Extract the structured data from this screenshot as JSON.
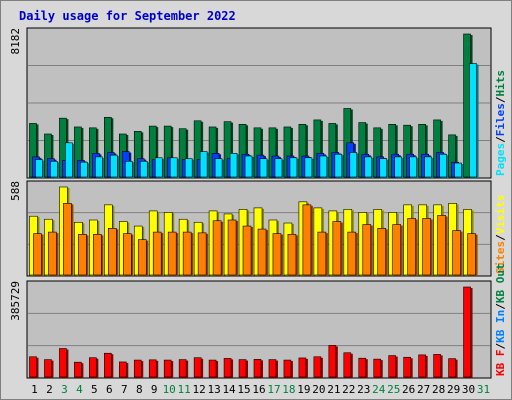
{
  "title": "Daily usage for September 2022",
  "colors": {
    "hits": "#008040",
    "files": "#0040ff",
    "pages": "#00e0ff",
    "visits": "#ffff00",
    "sites": "#ff8000",
    "kb_in": "#008040",
    "kb_out": "#0080ff",
    "kb_f": "#ff0000",
    "panel_bg": "#c0c0c0",
    "frame_bg": "#d8d8d8",
    "grid": "#808080",
    "weekday_label": "#000000",
    "weekend_label": "#008040"
  },
  "chart_data": {
    "type": "bar",
    "days": [
      "1",
      "2",
      "3",
      "4",
      "5",
      "6",
      "7",
      "8",
      "9",
      "10",
      "11",
      "12",
      "13",
      "14",
      "15",
      "16",
      "17",
      "18",
      "19",
      "20",
      "21",
      "22",
      "23",
      "24",
      "25",
      "26",
      "27",
      "28",
      "29",
      "30",
      "31"
    ],
    "weekend_days": [
      "3",
      "4",
      "10",
      "11",
      "17",
      "18",
      "24",
      "25",
      "31"
    ],
    "panels": [
      {
        "id": "hits",
        "axis_max_label": "8182",
        "ymax": 8182,
        "legend": [
          {
            "text": "Pages",
            "color": "#00e0ff"
          },
          {
            "text": "/",
            "color": "#000000"
          },
          {
            "text": "Files",
            "color": "#0040ff"
          },
          {
            "text": "/",
            "color": "#000000"
          },
          {
            "text": "Hits",
            "color": "#008040"
          }
        ],
        "series": [
          {
            "name": "Hits",
            "color": "#008040",
            "values": [
              3100,
              2500,
              3400,
              2900,
              2850,
              3450,
              2500,
              2650,
              2950,
              2950,
              2800,
              3250,
              2900,
              3200,
              3050,
              2850,
              2850,
              2900,
              3050,
              3300,
              3100,
              3950,
              3150,
              2850,
              3050,
              3000,
              3050,
              3300,
              2450,
              8182,
              0
            ]
          },
          {
            "name": "Files",
            "color": "#0040ff",
            "values": [
              1200,
              1100,
              1000,
              1000,
              1400,
              1450,
              1500,
              1100,
              1050,
              1150,
              1050,
              1050,
              1400,
              1100,
              1350,
              1300,
              1250,
              1250,
              1250,
              1400,
              1450,
              2000,
              1350,
              1200,
              1350,
              1350,
              1350,
              1450,
              900,
              0,
              0
            ]
          },
          {
            "name": "Pages",
            "color": "#00e0ff",
            "values": [
              1050,
              950,
              2000,
              900,
              1200,
              1300,
              950,
              950,
              1150,
              1150,
              1100,
              1500,
              1100,
              1400,
              1250,
              1100,
              1100,
              1150,
              1150,
              1250,
              1350,
              1450,
              1200,
              1100,
              1200,
              1200,
              1200,
              1350,
              850,
              6500,
              0
            ]
          }
        ]
      },
      {
        "id": "visits",
        "axis_max_label": "588",
        "ymax": 588,
        "legend": [
          {
            "text": "Sites",
            "color": "#ff8000"
          },
          {
            "text": "/",
            "color": "#000000"
          },
          {
            "text": "Visits",
            "color": "#ffff00"
          }
        ],
        "series": [
          {
            "name": "Visits",
            "color": "#ffff00",
            "values": [
              395,
              375,
              588,
              355,
              370,
              470,
              360,
              330,
              430,
              420,
              375,
              355,
              430,
              410,
              440,
              450,
              370,
              350,
              490,
              450,
              430,
              440,
              420,
              440,
              420,
              470,
              470,
              470,
              480,
              440,
              0
            ]
          },
          {
            "name": "Sites",
            "color": "#ff8000",
            "values": [
              280,
              290,
              480,
              275,
              275,
              315,
              280,
              240,
              290,
              290,
              290,
              285,
              365,
              370,
              330,
              310,
              280,
              275,
              470,
              290,
              360,
              290,
              340,
              315,
              340,
              380,
              380,
              400,
              300,
              280,
              0
            ]
          }
        ]
      },
      {
        "id": "kbytes",
        "axis_max_label": "385729",
        "ymax": 385729,
        "legend": [
          {
            "text": "KB F",
            "color": "#ff0000"
          },
          {
            "text": "/",
            "color": "#000000"
          },
          {
            "text": "KB In",
            "color": "#0080ff"
          },
          {
            "text": "/",
            "color": "#000000"
          },
          {
            "text": "KB Out",
            "color": "#008040"
          }
        ],
        "series": [
          {
            "name": "KB F",
            "color": "#ff0000",
            "values": [
              90000,
              78000,
              125000,
              67000,
              86000,
              105000,
              68000,
              76000,
              77000,
              76000,
              78000,
              86000,
              76000,
              83000,
              78000,
              79000,
              78000,
              76000,
              85000,
              90000,
              138000,
              107000,
              84000,
              80000,
              95000,
              88000,
              98000,
              100000,
              82000,
              385729,
              0
            ]
          }
        ]
      }
    ]
  }
}
